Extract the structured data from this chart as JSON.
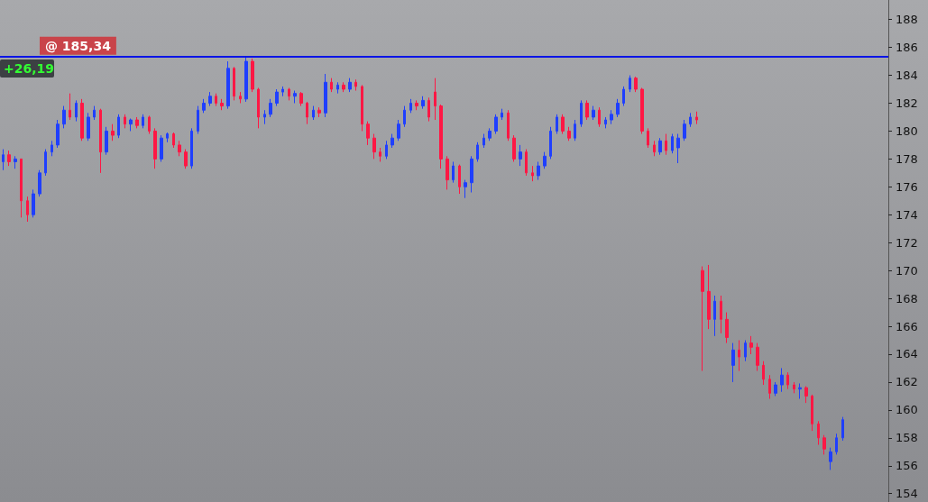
{
  "chart_data": {
    "type": "candlestick",
    "ylim": [
      153.4,
      189.4
    ],
    "yticks": [
      154,
      156,
      158,
      160,
      162,
      164,
      166,
      168,
      170,
      172,
      174,
      176,
      178,
      180,
      182,
      184,
      186,
      188
    ],
    "tick_labels": "y",
    "categories": [
      null,
      null,
      null,
      null,
      null,
      null,
      null,
      null,
      null,
      null,
      null,
      null,
      null,
      null,
      null,
      null,
      null,
      null,
      null,
      null,
      null,
      null,
      null,
      null,
      null,
      null,
      null,
      null,
      null,
      null,
      null,
      null,
      null,
      null,
      null,
      null,
      null,
      null,
      null,
      null,
      null,
      null,
      null,
      null,
      null,
      null,
      null,
      null,
      null,
      null,
      null,
      null,
      null,
      null,
      null,
      null,
      null,
      null,
      null,
      null,
      null,
      null,
      null,
      null,
      null,
      null,
      null,
      null,
      null,
      null,
      null,
      null,
      null,
      null,
      null,
      null,
      null,
      null,
      null,
      null,
      null,
      null,
      null,
      null,
      null,
      null,
      null,
      null,
      null,
      null,
      null,
      null,
      null,
      null,
      null,
      null,
      null,
      null,
      null,
      null,
      null,
      null,
      null,
      null,
      null,
      null,
      null,
      null,
      null,
      null,
      null,
      null,
      null,
      null,
      null,
      null,
      null,
      null,
      null,
      null,
      null,
      null,
      null,
      null,
      null,
      null,
      null,
      null,
      null,
      null,
      null,
      null,
      null,
      null,
      null,
      null,
      null,
      null,
      null,
      null,
      null,
      null,
      null,
      null,
      null,
      null
    ],
    "series": [
      {
        "color": "#1f3fff",
        "ohlc": [
          [
            177.8,
            178.7,
            177.2,
            178.3
          ],
          null,
          [
            177.8,
            178.2,
            177.3,
            178.0
          ],
          null,
          null,
          [
            174.0,
            175.8,
            173.8,
            175.5
          ],
          [
            175.5,
            177.2,
            175.3,
            177.0
          ],
          [
            177.0,
            178.7,
            176.8,
            178.5
          ],
          [
            178.5,
            179.3,
            178.2,
            179.0
          ],
          [
            179.0,
            180.8,
            178.8,
            180.5
          ],
          [
            180.5,
            181.8,
            180.2,
            181.5
          ],
          null,
          [
            181.0,
            182.2,
            180.7,
            182.0
          ],
          null,
          [
            179.5,
            181.3,
            179.3,
            181.0
          ],
          [
            181.0,
            181.8,
            180.8,
            181.5
          ],
          null,
          [
            178.5,
            180.3,
            178.3,
            180.0
          ],
          null,
          [
            179.7,
            181.2,
            179.5,
            181.0
          ],
          null,
          [
            180.5,
            180.9,
            180.0,
            180.8
          ],
          null,
          [
            180.4,
            181.2,
            180.2,
            181.0
          ],
          null,
          null,
          [
            178.0,
            179.7,
            177.8,
            179.5
          ],
          [
            179.5,
            179.9,
            179.2,
            179.8
          ],
          null,
          null,
          null,
          [
            177.5,
            180.2,
            177.3,
            180.0
          ],
          [
            180.0,
            181.8,
            179.8,
            181.5
          ],
          [
            181.5,
            182.3,
            181.3,
            182.0
          ],
          [
            182.0,
            182.8,
            181.8,
            182.5
          ],
          null,
          null,
          [
            181.8,
            185.0,
            181.6,
            184.5
          ],
          null,
          null,
          [
            182.3,
            185.34,
            182.1,
            185.0
          ],
          null,
          null,
          [
            181.0,
            181.5,
            180.5,
            181.2
          ],
          [
            181.2,
            182.3,
            181.0,
            182.0
          ],
          [
            182.0,
            183.0,
            181.8,
            182.8
          ],
          [
            182.8,
            183.2,
            182.5,
            183.0
          ],
          null,
          [
            182.5,
            182.9,
            182.0,
            182.7
          ],
          null,
          null,
          [
            181.0,
            181.8,
            180.8,
            181.5
          ],
          null,
          [
            181.3,
            184.1,
            181.0,
            183.5
          ],
          null,
          [
            183.0,
            183.5,
            182.7,
            183.3
          ],
          null,
          [
            183.0,
            183.8,
            182.8,
            183.5
          ],
          null,
          null,
          null,
          null,
          null,
          [
            178.2,
            179.3,
            178.0,
            179.0
          ],
          [
            179.0,
            179.8,
            178.8,
            179.5
          ],
          [
            179.5,
            180.8,
            179.3,
            180.5
          ],
          [
            180.5,
            181.8,
            180.3,
            181.5
          ],
          [
            181.5,
            182.3,
            181.3,
            182.0
          ],
          null,
          [
            181.8,
            182.5,
            181.6,
            182.2
          ],
          null,
          null,
          null,
          null,
          [
            176.5,
            177.8,
            176.3,
            177.5
          ],
          null,
          [
            176.0,
            176.5,
            175.2,
            176.3
          ],
          [
            176.3,
            178.2,
            175.6,
            178.0
          ],
          [
            178.0,
            179.2,
            177.8,
            179.0
          ],
          [
            179.0,
            179.8,
            178.8,
            179.5
          ],
          [
            179.5,
            180.2,
            179.3,
            180.0
          ],
          [
            180.0,
            181.2,
            179.8,
            181.0
          ],
          [
            181.0,
            181.6,
            180.8,
            181.3
          ],
          null,
          null,
          [
            178.0,
            179.0,
            177.5,
            178.5
          ],
          null,
          null,
          [
            176.8,
            177.8,
            176.5,
            177.5
          ],
          [
            177.5,
            178.5,
            177.3,
            178.2
          ],
          [
            178.2,
            180.3,
            178.0,
            180.0
          ],
          [
            180.0,
            181.2,
            179.8,
            181.0
          ],
          null,
          null,
          [
            179.5,
            180.8,
            179.3,
            180.5
          ],
          [
            180.5,
            182.2,
            180.3,
            182.0
          ],
          null,
          [
            181.0,
            181.8,
            180.8,
            181.5
          ],
          null,
          [
            180.5,
            181.0,
            180.2,
            180.8
          ],
          [
            180.8,
            181.5,
            180.5,
            181.2
          ],
          [
            181.2,
            182.3,
            181.0,
            182.0
          ],
          [
            182.0,
            183.2,
            181.8,
            183.0
          ],
          [
            183.0,
            184.0,
            182.8,
            183.8
          ],
          null,
          null,
          null,
          null,
          [
            178.5,
            179.5,
            178.3,
            179.3
          ],
          null,
          [
            178.6,
            179.8,
            178.4,
            179.6
          ],
          [
            178.8,
            179.8,
            177.7,
            179.5
          ],
          [
            179.5,
            180.8,
            179.3,
            180.5
          ],
          [
            180.5,
            181.3,
            180.3,
            181.0
          ],
          null,
          null,
          null,
          [
            166.5,
            168.2,
            165.3,
            167.8
          ],
          null,
          null,
          [
            163.2,
            164.8,
            162.0,
            164.3
          ],
          null,
          [
            163.8,
            165.0,
            163.5,
            164.8
          ],
          null,
          null,
          null,
          null,
          [
            161.2,
            162.0,
            161.0,
            161.8
          ],
          [
            161.8,
            163.0,
            161.3,
            162.5
          ],
          null,
          null,
          [
            161.5,
            161.9,
            160.8,
            161.6
          ],
          null,
          null,
          null,
          null,
          [
            156.3,
            157.3,
            155.7,
            157.0
          ],
          [
            157.0,
            158.3,
            156.8,
            158.0
          ],
          [
            158.0,
            159.5,
            157.8,
            159.3
          ],
          null,
          null,
          null,
          null,
          null,
          null,
          null
        ]
      },
      {
        "color": "#ff1744",
        "ohlc": [
          null,
          [
            178.3,
            178.6,
            177.5,
            177.8
          ],
          null,
          [
            178.0,
            178.0,
            173.8,
            175.0
          ],
          [
            175.0,
            175.3,
            173.5,
            174.0
          ],
          null,
          null,
          null,
          null,
          null,
          null,
          [
            181.5,
            182.7,
            180.8,
            181.0
          ],
          null,
          [
            182.0,
            182.3,
            179.3,
            179.5
          ],
          null,
          null,
          [
            181.5,
            181.6,
            177.0,
            178.5
          ],
          null,
          [
            180.0,
            180.5,
            179.3,
            179.7
          ],
          null,
          [
            181.0,
            181.2,
            180.2,
            180.5
          ],
          null,
          [
            180.8,
            181.0,
            180.2,
            180.4
          ],
          null,
          [
            181.0,
            181.1,
            179.8,
            180.0
          ],
          [
            180.0,
            180.2,
            177.3,
            178.0
          ],
          null,
          null,
          [
            179.8,
            179.9,
            178.8,
            179.0
          ],
          [
            179.0,
            179.3,
            178.2,
            178.5
          ],
          [
            178.5,
            178.7,
            177.3,
            177.5
          ],
          null,
          null,
          null,
          null,
          [
            182.5,
            182.7,
            181.8,
            182.0
          ],
          [
            182.0,
            182.3,
            181.5,
            181.8
          ],
          null,
          [
            184.5,
            184.6,
            182.2,
            182.5
          ],
          [
            182.5,
            182.8,
            182.0,
            182.3
          ],
          null,
          [
            185.0,
            185.2,
            182.8,
            183.0
          ],
          [
            183.0,
            183.1,
            180.2,
            181.0
          ],
          null,
          null,
          null,
          null,
          [
            183.0,
            183.1,
            182.2,
            182.5
          ],
          null,
          [
            182.7,
            182.8,
            181.8,
            182.0
          ],
          [
            182.0,
            182.1,
            180.5,
            181.0
          ],
          null,
          [
            181.5,
            181.7,
            181.0,
            181.3
          ],
          null,
          [
            183.5,
            183.8,
            182.8,
            183.0
          ],
          null,
          [
            183.3,
            183.5,
            182.8,
            183.0
          ],
          null,
          [
            183.5,
            183.7,
            182.9,
            183.2
          ],
          [
            183.2,
            183.3,
            180.0,
            180.5
          ],
          [
            180.5,
            180.7,
            179.0,
            179.5
          ],
          [
            179.5,
            179.8,
            178.0,
            178.5
          ],
          [
            178.5,
            178.8,
            177.8,
            178.2
          ],
          null,
          null,
          null,
          null,
          null,
          [
            182.0,
            182.2,
            181.5,
            181.8
          ],
          null,
          [
            182.2,
            182.4,
            180.7,
            181.0
          ],
          [
            182.8,
            183.8,
            180.8,
            181.8
          ],
          [
            181.8,
            181.9,
            177.3,
            178.0
          ],
          [
            178.0,
            178.2,
            175.8,
            176.5
          ],
          null,
          [
            177.5,
            177.6,
            175.5,
            176.0
          ],
          null,
          null,
          null,
          null,
          null,
          null,
          null,
          [
            181.3,
            181.5,
            179.3,
            179.5
          ],
          [
            179.5,
            179.7,
            177.8,
            178.0
          ],
          null,
          [
            178.5,
            178.7,
            176.8,
            177.0
          ],
          [
            177.0,
            177.5,
            176.4,
            176.8
          ],
          null,
          null,
          null,
          null,
          [
            181.0,
            181.2,
            179.8,
            180.0
          ],
          [
            180.0,
            180.3,
            179.3,
            179.5
          ],
          null,
          null,
          [
            182.0,
            182.2,
            180.8,
            181.0
          ],
          null,
          [
            181.5,
            181.7,
            180.3,
            180.5
          ],
          null,
          null,
          null,
          null,
          null,
          [
            183.8,
            183.9,
            182.8,
            183.0
          ],
          [
            183.0,
            183.1,
            179.8,
            180.0
          ],
          [
            180.0,
            180.2,
            178.8,
            179.0
          ],
          [
            179.0,
            179.3,
            178.2,
            178.5
          ],
          null,
          [
            179.3,
            179.8,
            178.3,
            178.6
          ],
          null,
          null,
          null,
          null,
          [
            181.0,
            181.4,
            180.5,
            180.8
          ],
          [
            170.0,
            170.3,
            162.8,
            168.5
          ],
          [
            168.5,
            170.4,
            165.8,
            166.5
          ],
          null,
          [
            167.8,
            168.2,
            165.5,
            166.5
          ],
          [
            166.5,
            167.0,
            164.8,
            165.2
          ],
          null,
          [
            164.3,
            165.0,
            162.8,
            163.8
          ],
          null,
          [
            164.8,
            165.3,
            164.0,
            164.5
          ],
          [
            164.5,
            164.8,
            162.8,
            163.2
          ],
          [
            163.2,
            163.5,
            161.8,
            162.2
          ],
          [
            162.2,
            162.5,
            160.8,
            161.2
          ],
          null,
          null,
          [
            162.5,
            162.7,
            161.5,
            161.8
          ],
          [
            161.8,
            162.0,
            161.2,
            161.5
          ],
          null,
          [
            161.6,
            161.7,
            160.5,
            161.0
          ],
          [
            161.0,
            161.1,
            158.5,
            159.0
          ],
          [
            159.0,
            159.2,
            157.5,
            158.0
          ],
          [
            158.0,
            158.2,
            156.8,
            157.2
          ],
          null,
          null,
          null,
          null,
          null,
          null,
          null,
          null,
          null,
          null
        ]
      }
    ],
    "ref_lines": [
      {
        "axis": "y",
        "value": 185.34,
        "label": "@ 185,34",
        "color": "#0a14e6"
      }
    ],
    "annotations": [
      "+26,19"
    ]
  }
}
